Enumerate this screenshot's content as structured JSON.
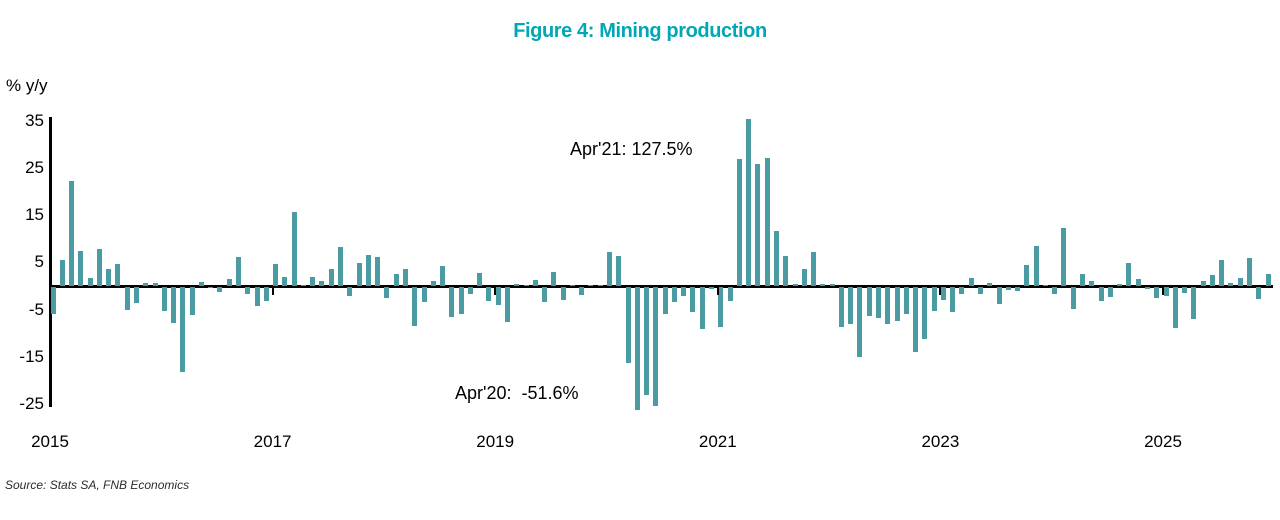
{
  "figure": {
    "title": "Figure 4: Mining production",
    "y_axis_unit": "% y/y",
    "source": "Source: Stats SA, FNB Economics"
  },
  "annotations": {
    "apr21": "Apr'21: 127.5%",
    "apr20": "Apr'20:  -51.6%"
  },
  "chart_data": {
    "type": "bar",
    "title": "Figure 4: Mining production",
    "xlabel": "",
    "ylabel": "% y/y",
    "x_start": "2015-01",
    "frequency": "monthly",
    "x_tick_labels": [
      "2015",
      "2017",
      "2019",
      "2021",
      "2023",
      "2025"
    ],
    "y_tick_labels": [
      35,
      25,
      15,
      5,
      -5,
      -15,
      -25
    ],
    "y_axis_range_shown": [
      -25,
      35
    ],
    "bars_clipped_to_display_range": [
      "2020-04 (-51.6%)",
      "2021-04 (+127.5%)"
    ],
    "grid": "off",
    "legend": "none",
    "bar_color": "#4A9CA2",
    "title_color": "#00A7B6",
    "values": [
      -5.8,
      5.5,
      22.3,
      7.4,
      1.8,
      7.8,
      3.6,
      4.7,
      -4.9,
      -3.4,
      0.7,
      0.7,
      -5.1,
      -7.6,
      -18.0,
      -5.9,
      0.9,
      -0.3,
      -1.0,
      1.5,
      6.2,
      -1.5,
      -4.0,
      -3.0,
      4.6,
      2.0,
      15.7,
      0.2,
      1.9,
      1.1,
      3.7,
      8.2,
      -1.9,
      4.9,
      6.6,
      6.2,
      -2.3,
      2.5,
      3.7,
      -8.3,
      -3.2,
      1.1,
      4.2,
      -6.4,
      -5.8,
      -1.4,
      2.8,
      -2.9,
      -3.8,
      -7.5,
      0.4,
      0.2,
      1.3,
      -3.2,
      2.9,
      -2.7,
      0.3,
      -1.6,
      0.3,
      0.3,
      7.3,
      6.4,
      -16.2,
      -51.6,
      -22.9,
      -25.2,
      -5.7,
      -3.1,
      -1.9,
      -5.3,
      -9.0,
      -0.5,
      -8.4,
      -3.0,
      26.9,
      127.5,
      25.8,
      27.2,
      11.7,
      6.4,
      0.5,
      3.5,
      7.3,
      0.5,
      0.4,
      -8.5,
      -7.8,
      -14.8,
      -6.1,
      -6.5,
      -7.9,
      -7.1,
      -5.8,
      -13.8,
      -11.1,
      -5.1,
      -2.8,
      -5.4,
      -1.4,
      1.7,
      -1.5,
      0.6,
      -3.5,
      -0.7,
      -0.9,
      4.4,
      8.5,
      0.3,
      -1.5,
      12.2,
      -4.6,
      2.5,
      1.1,
      -3.0,
      -2.1,
      0.4,
      4.8,
      1.4,
      -0.4,
      -2.3,
      -1.9,
      -8.6,
      -1.2,
      -6.8,
      1.1,
      2.3,
      5.5,
      0.6,
      1.6,
      6.0,
      -2.6,
      2.5
    ]
  }
}
